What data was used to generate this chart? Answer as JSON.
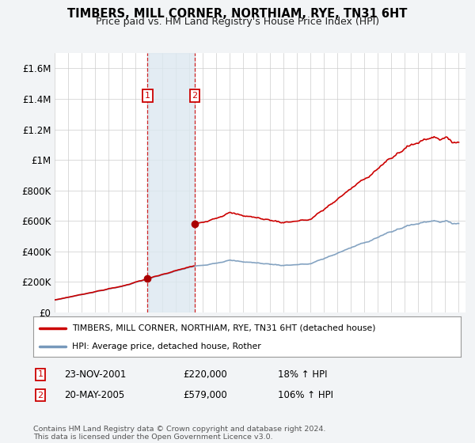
{
  "title": "TIMBERS, MILL CORNER, NORTHIAM, RYE, TN31 6HT",
  "subtitle": "Price paid vs. HM Land Registry's House Price Index (HPI)",
  "legend_label1": "TIMBERS, MILL CORNER, NORTHIAM, RYE, TN31 6HT (detached house)",
  "legend_label2": "HPI: Average price, detached house, Rother",
  "footnote": "Contains HM Land Registry data © Crown copyright and database right 2024.\nThis data is licensed under the Open Government Licence v3.0.",
  "table": [
    {
      "num": "1",
      "date": "23-NOV-2001",
      "price": "£220,000",
      "hpi": "18% ↑ HPI"
    },
    {
      "num": "2",
      "date": "20-MAY-2005",
      "price": "£579,000",
      "hpi": "106% ↑ HPI"
    }
  ],
  "sale1_x": 2001.9,
  "sale1_y": 220000,
  "sale2_x": 2005.4,
  "sale2_y": 579000,
  "hpi_color": "#7799bb",
  "price_color": "#cc0000",
  "shade_color": "#dce8f0",
  "marker_color": "#aa0000",
  "ylim_min": 0,
  "ylim_max": 1700000,
  "yticks": [
    0,
    200000,
    400000,
    600000,
    800000,
    1000000,
    1200000,
    1400000,
    1600000
  ],
  "ytick_labels": [
    "£0",
    "£200K",
    "£400K",
    "£600K",
    "£800K",
    "£1M",
    "£1.2M",
    "£1.4M",
    "£1.6M"
  ],
  "xmin": 1995,
  "xmax": 2025.5,
  "bg_color": "#f2f4f6",
  "plot_bg": "#ffffff",
  "grid_color": "#cccccc"
}
